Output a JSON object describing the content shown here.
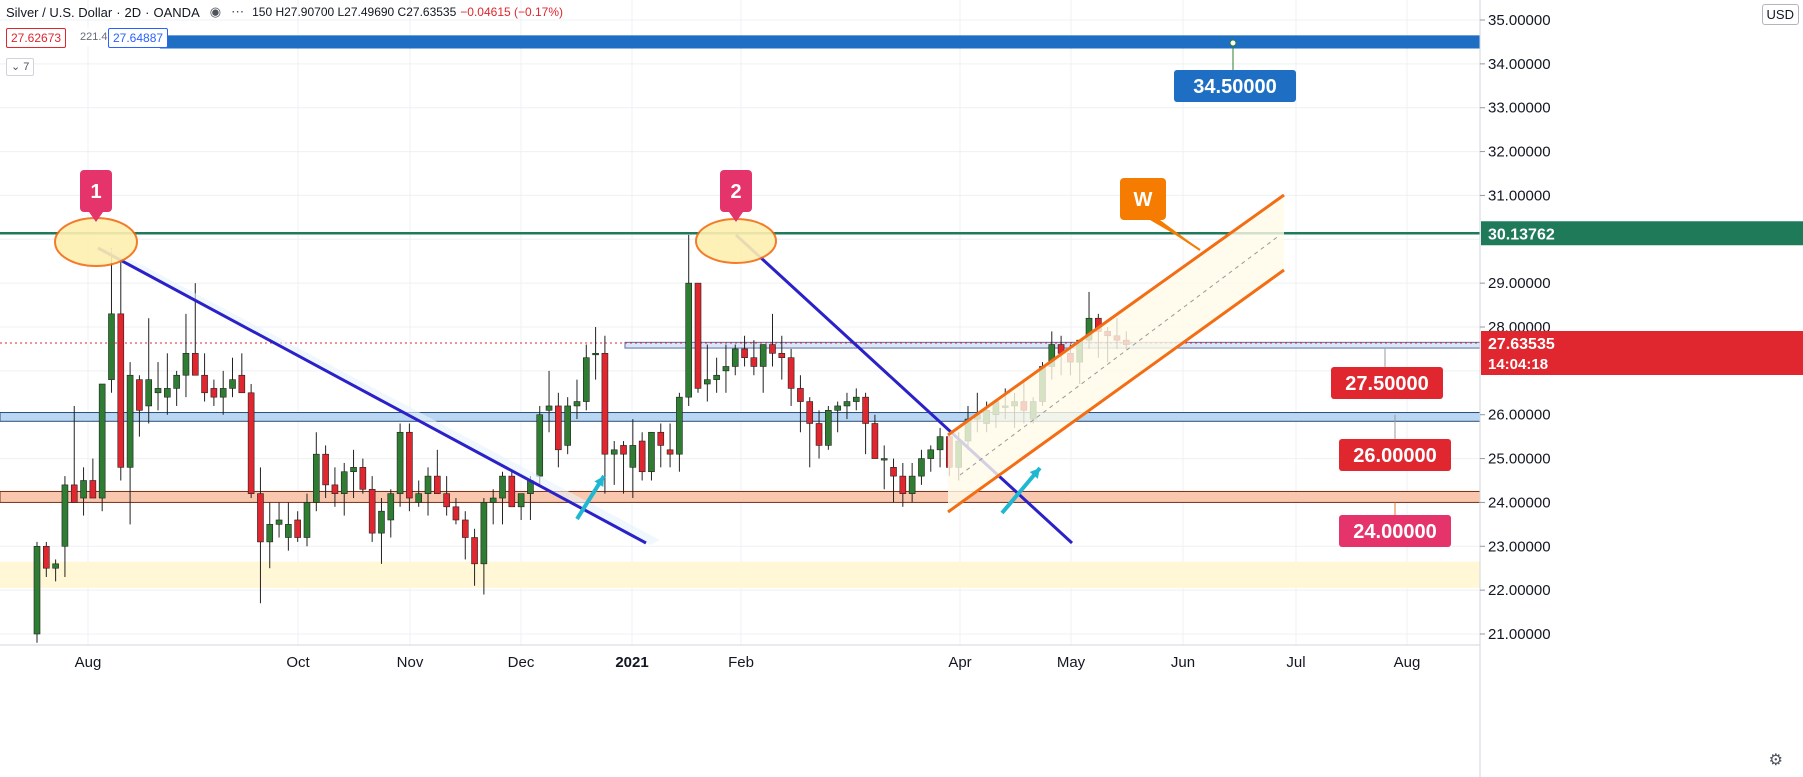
{
  "header": {
    "symbol": "Silver / U.S. Dollar",
    "interval": "2D",
    "source": "OANDA",
    "ohlc": "150  H27.90700  L27.49690  C27.63535",
    "change": "−0.04615 (−0.17%)",
    "sell_price": "27.62673",
    "spread": "221.4",
    "buy_price": "27.64887",
    "indicator_collapse": "7",
    "currency": "USD"
  },
  "colors": {
    "up": "#2e7d32",
    "down": "#e0262e",
    "trendline": "#2b21c9",
    "channel": "#f26d14",
    "resistance": "#1f7a5a",
    "target_band": "#1e6fc4",
    "cyan_arrow": "#1fb7d2",
    "marker_pink": "#e5336c",
    "orange_label": "#f57c00"
  },
  "chart_data": {
    "type": "candlestick",
    "ylim": [
      20.7,
      35.3
    ],
    "y_ticks": [
      "35.00000",
      "34.00000",
      "33.00000",
      "32.00000",
      "31.00000",
      "29.00000",
      "28.00000",
      "26.00000",
      "25.00000",
      "24.00000",
      "23.00000",
      "22.00000",
      "21.00000"
    ],
    "x_ticks": [
      "Aug",
      "Oct",
      "Nov",
      "Dec",
      "2021",
      "Feb",
      "Apr",
      "May",
      "Jun",
      "Jul",
      "Aug"
    ],
    "x_tick_x": [
      88,
      298,
      410,
      521,
      632,
      741,
      960,
      1071,
      1183,
      1296,
      1407
    ],
    "candles_ohlc": [
      [
        21,
        23.1,
        20.8,
        23
      ],
      [
        23,
        23.1,
        22.3,
        22.5
      ],
      [
        22.5,
        22.7,
        22.2,
        22.6
      ],
      [
        23,
        24.6,
        22.3,
        24.4
      ],
      [
        24.4,
        26.2,
        24,
        24
      ],
      [
        24.1,
        24.8,
        23.7,
        24.5
      ],
      [
        24.5,
        25,
        24.2,
        24.1
      ],
      [
        24.1,
        26.7,
        23.8,
        26.7
      ],
      [
        26.8,
        29.8,
        26.5,
        28.3
      ],
      [
        28.3,
        29.6,
        24.5,
        24.8
      ],
      [
        24.8,
        27.2,
        23.5,
        26.9
      ],
      [
        26.8,
        26.9,
        25.5,
        26.1
      ],
      [
        26.2,
        28.2,
        25.8,
        26.8
      ],
      [
        26.5,
        27.2,
        26.1,
        26.6
      ],
      [
        26.4,
        27.4,
        26,
        26.6
      ],
      [
        26.6,
        27,
        26.2,
        26.9
      ],
      [
        26.9,
        28.3,
        26.4,
        27.4
      ],
      [
        27.4,
        29,
        26.9,
        26.9
      ],
      [
        26.9,
        27.4,
        26.3,
        26.5
      ],
      [
        26.6,
        26.8,
        26.2,
        26.4
      ],
      [
        26.4,
        27,
        26,
        26.6
      ],
      [
        26.6,
        27.3,
        26.4,
        26.8
      ],
      [
        26.9,
        27.4,
        26.5,
        26.5
      ],
      [
        26.5,
        26.7,
        24.1,
        24.2
      ],
      [
        24.2,
        24.8,
        21.7,
        23.1
      ],
      [
        23.1,
        24,
        22.5,
        23.5
      ],
      [
        23.5,
        24,
        23.2,
        23.6
      ],
      [
        23.2,
        24,
        22.9,
        23.5
      ],
      [
        23.6,
        23.8,
        23.1,
        23.2
      ],
      [
        23.2,
        24.2,
        23,
        24
      ],
      [
        24,
        25.6,
        23.8,
        25.1
      ],
      [
        25.1,
        25.3,
        24.1,
        24.4
      ],
      [
        24.4,
        24.8,
        23.9,
        24.2
      ],
      [
        24.2,
        24.9,
        23.7,
        24.7
      ],
      [
        24.7,
        25.2,
        24.1,
        24.8
      ],
      [
        24.8,
        25,
        24.2,
        24.3
      ],
      [
        24.3,
        24.6,
        23.1,
        23.3
      ],
      [
        23.3,
        24.1,
        22.6,
        23.8
      ],
      [
        23.6,
        24.3,
        23.2,
        24.2
      ],
      [
        24.2,
        25.8,
        23.9,
        25.6
      ],
      [
        25.6,
        25.8,
        23.8,
        24.1
      ],
      [
        24,
        24.5,
        23.9,
        24.2
      ],
      [
        24.2,
        24.8,
        23.7,
        24.6
      ],
      [
        24.6,
        25.2,
        24.2,
        24.2
      ],
      [
        24.2,
        24.6,
        23.7,
        23.9
      ],
      [
        23.9,
        24.1,
        23.5,
        23.6
      ],
      [
        23.6,
        23.8,
        22.7,
        23.2
      ],
      [
        23.2,
        23.4,
        22.1,
        22.6
      ],
      [
        22.6,
        24.1,
        21.9,
        24
      ],
      [
        24,
        24.3,
        23.5,
        24.1
      ],
      [
        24.1,
        24.7,
        23.5,
        24.6
      ],
      [
        24.6,
        24.7,
        23.9,
        23.9
      ],
      [
        23.9,
        24.1,
        23.6,
        24.2
      ],
      [
        24.2,
        24.6,
        23.6,
        24.5
      ],
      [
        24.6,
        26.2,
        24.4,
        26
      ],
      [
        26.1,
        27,
        25.6,
        26.2
      ],
      [
        26.2,
        26.5,
        24.8,
        25.2
      ],
      [
        25.3,
        26.4,
        25.1,
        26.2
      ],
      [
        26.2,
        26.8,
        25.9,
        26.3
      ],
      [
        26.3,
        27.6,
        26.1,
        27.3
      ],
      [
        27.4,
        28,
        26.8,
        27.4
      ],
      [
        27.4,
        27.8,
        24.2,
        25.1
      ],
      [
        25.1,
        25.4,
        24.4,
        25.2
      ],
      [
        25.3,
        25.4,
        24.2,
        25.1
      ],
      [
        24.8,
        25.9,
        24.1,
        25.3
      ],
      [
        25.4,
        25.6,
        24.5,
        24.7
      ],
      [
        24.7,
        25.6,
        24.5,
        25.6
      ],
      [
        25.6,
        25.8,
        24.8,
        25.3
      ],
      [
        25.2,
        25.8,
        24.8,
        25.1
      ],
      [
        25.1,
        26.5,
        24.7,
        26.4
      ],
      [
        26.4,
        30.1,
        26.2,
        29.0
      ],
      [
        29,
        29,
        26.5,
        26.6
      ],
      [
        26.7,
        27.6,
        26.3,
        26.8
      ],
      [
        26.8,
        27.3,
        26.5,
        26.9
      ],
      [
        27,
        27.6,
        26.5,
        27.1
      ],
      [
        27.1,
        27.6,
        26.9,
        27.5
      ],
      [
        27.5,
        27.8,
        27.1,
        27.3
      ],
      [
        27.3,
        27.7,
        26.9,
        27.1
      ],
      [
        27.1,
        27.6,
        26.5,
        27.6
      ],
      [
        27.6,
        28.3,
        27.1,
        27.4
      ],
      [
        27.4,
        27.8,
        26.8,
        27.3
      ],
      [
        27.3,
        27.5,
        26.2,
        26.6
      ],
      [
        26.6,
        26.9,
        25.6,
        26.3
      ],
      [
        26.3,
        26.4,
        24.8,
        25.8
      ],
      [
        25.8,
        26.1,
        25,
        25.3
      ],
      [
        25.3,
        26.2,
        25.2,
        26.1
      ],
      [
        26.1,
        26.3,
        25.6,
        26.2
      ],
      [
        26.2,
        26.5,
        25.9,
        26.3
      ],
      [
        26.3,
        26.6,
        26.1,
        26.4
      ],
      [
        26.4,
        26.5,
        25.1,
        25.8
      ],
      [
        25.8,
        26,
        25,
        25
      ],
      [
        25,
        25.3,
        24.3,
        25
      ],
      [
        24.8,
        25,
        24,
        24.6
      ],
      [
        24.6,
        24.9,
        23.9,
        24.2
      ],
      [
        24.2,
        24.9,
        24,
        24.6
      ],
      [
        24.6,
        25.2,
        24.4,
        25
      ],
      [
        25,
        25.3,
        24.7,
        25.2
      ],
      [
        25.2,
        25.7,
        24.8,
        25.5
      ],
      [
        25.5,
        25.6,
        24.6,
        24.8
      ],
      [
        24.8,
        25.6,
        24.5,
        25.4
      ],
      [
        25.4,
        26.2,
        25.2,
        25.9
      ],
      [
        25.9,
        26.5,
        25.6,
        26
      ],
      [
        25.8,
        26.3,
        25.6,
        26.1
      ],
      [
        26,
        26.3,
        25.7,
        26.3
      ],
      [
        26.2,
        26.6,
        25.9,
        26.2
      ],
      [
        26.2,
        26.5,
        25.7,
        26.3
      ],
      [
        26.3,
        26.8,
        25.8,
        26.1
      ],
      [
        25.9,
        26.4,
        25.8,
        26.3
      ],
      [
        26.3,
        27.2,
        26.2,
        27.1
      ],
      [
        27.1,
        27.9,
        26.8,
        27.6
      ],
      [
        27.6,
        27.8,
        26.9,
        27.4
      ],
      [
        27.4,
        27.6,
        26.9,
        27.2
      ],
      [
        27.2,
        27.7,
        26.7,
        27.7
      ],
      [
        27.7,
        28.8,
        27.5,
        28.2
      ],
      [
        28.2,
        28.3,
        27.3,
        27.9
      ],
      [
        27.9,
        28,
        27.2,
        27.8
      ],
      [
        27.8,
        28.2,
        27.5,
        27.7
      ],
      [
        27.7,
        27.9,
        27.5,
        27.6
      ]
    ]
  },
  "annotations": {
    "marker1": "1",
    "marker2": "2",
    "w_label": "W",
    "target_label": "34.50000",
    "resistance_label": "30.13762",
    "price_label": "27.63535",
    "countdown": "14:04:18",
    "level_27_5": "27.50000",
    "level_26": "26.00000",
    "level_24": "24.00000"
  }
}
